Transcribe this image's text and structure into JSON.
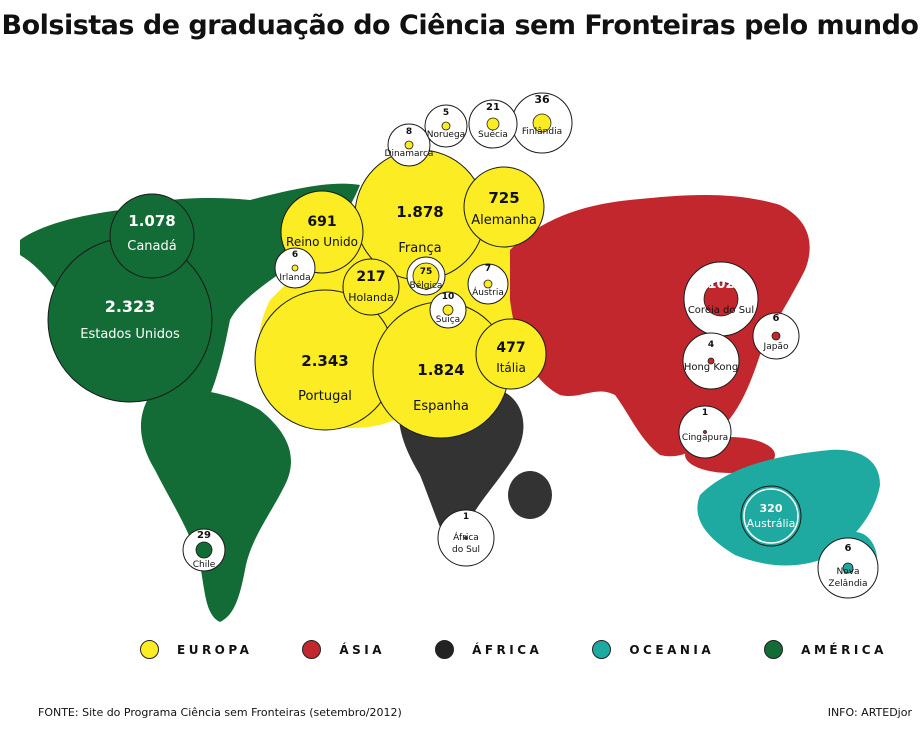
{
  "title": "Bolsistas de graduação do Ciência sem Fronteiras pelo mundo",
  "colors": {
    "europa": "#fbec23",
    "asia": "#c1272d",
    "africa": "#333333",
    "oceania": "#1eaaa0",
    "america": "#136b35",
    "white": "#ffffff"
  },
  "legend": [
    {
      "label": "EUROPA",
      "color": "#fbec23"
    },
    {
      "label": "ÁSIA",
      "color": "#c1272d"
    },
    {
      "label": "ÁFRICA",
      "color": "#222222"
    },
    {
      "label": "OCEANIA",
      "color": "#1eaaa0"
    },
    {
      "label": "AMÉRICA",
      "color": "#136b35"
    }
  ],
  "countries": [
    {
      "id": "estados-unidos",
      "value": "2.323",
      "name": "Estados Unidos",
      "region": "america"
    },
    {
      "id": "canada",
      "value": "1.078",
      "name": "Canadá",
      "region": "america"
    },
    {
      "id": "chile",
      "value": "29",
      "name": "Chile",
      "region": "america"
    },
    {
      "id": "portugal",
      "value": "2.343",
      "name": "Portugal",
      "region": "europa"
    },
    {
      "id": "espanha",
      "value": "1.824",
      "name": "Espanha",
      "region": "europa"
    },
    {
      "id": "franca",
      "value": "1.878",
      "name": "França",
      "region": "europa"
    },
    {
      "id": "alemanha",
      "value": "725",
      "name": "Alemanha",
      "region": "europa"
    },
    {
      "id": "reino-unido",
      "value": "691",
      "name": "Reino Unido",
      "region": "europa"
    },
    {
      "id": "italia",
      "value": "477",
      "name": "Itália",
      "region": "europa"
    },
    {
      "id": "holanda",
      "value": "217",
      "name": "Holanda",
      "region": "europa"
    },
    {
      "id": "belgica",
      "value": "75",
      "name": "Bélgica",
      "region": "europa"
    },
    {
      "id": "finlandia",
      "value": "36",
      "name": "Finlândia",
      "region": "europa"
    },
    {
      "id": "suecia",
      "value": "21",
      "name": "Suécia",
      "region": "europa"
    },
    {
      "id": "suica",
      "value": "10",
      "name": "Suiça",
      "region": "europa"
    },
    {
      "id": "dinamarca",
      "value": "8",
      "name": "Dinamarca",
      "region": "europa"
    },
    {
      "id": "austria",
      "value": "7",
      "name": "Áustria",
      "region": "europa"
    },
    {
      "id": "irlanda",
      "value": "6",
      "name": "Irlanda",
      "region": "europa"
    },
    {
      "id": "noruega",
      "value": "5",
      "name": "Noruega",
      "region": "europa"
    },
    {
      "id": "coreia-do-sul",
      "value": "102",
      "name": "Coréia do Sul",
      "region": "asia"
    },
    {
      "id": "japao",
      "value": "6",
      "name": "Japão",
      "region": "asia"
    },
    {
      "id": "hong-kong",
      "value": "4",
      "name": "Hong Kong",
      "region": "asia"
    },
    {
      "id": "cingapura",
      "value": "1",
      "name": "Cingapura",
      "region": "asia"
    },
    {
      "id": "africa-do-sul",
      "value": "1",
      "name": "África do Sul",
      "region": "africa"
    },
    {
      "id": "australia",
      "value": "320",
      "name": "Austrália",
      "region": "oceania"
    },
    {
      "id": "nova-zelandia",
      "value": "6",
      "name": "Nova Zelândia",
      "region": "oceania"
    }
  ],
  "footer": {
    "source": "FONTE: Site do Programa Ciência sem Fronteiras (setembro/2012)",
    "credit": "INFO: ARTEDjor"
  }
}
